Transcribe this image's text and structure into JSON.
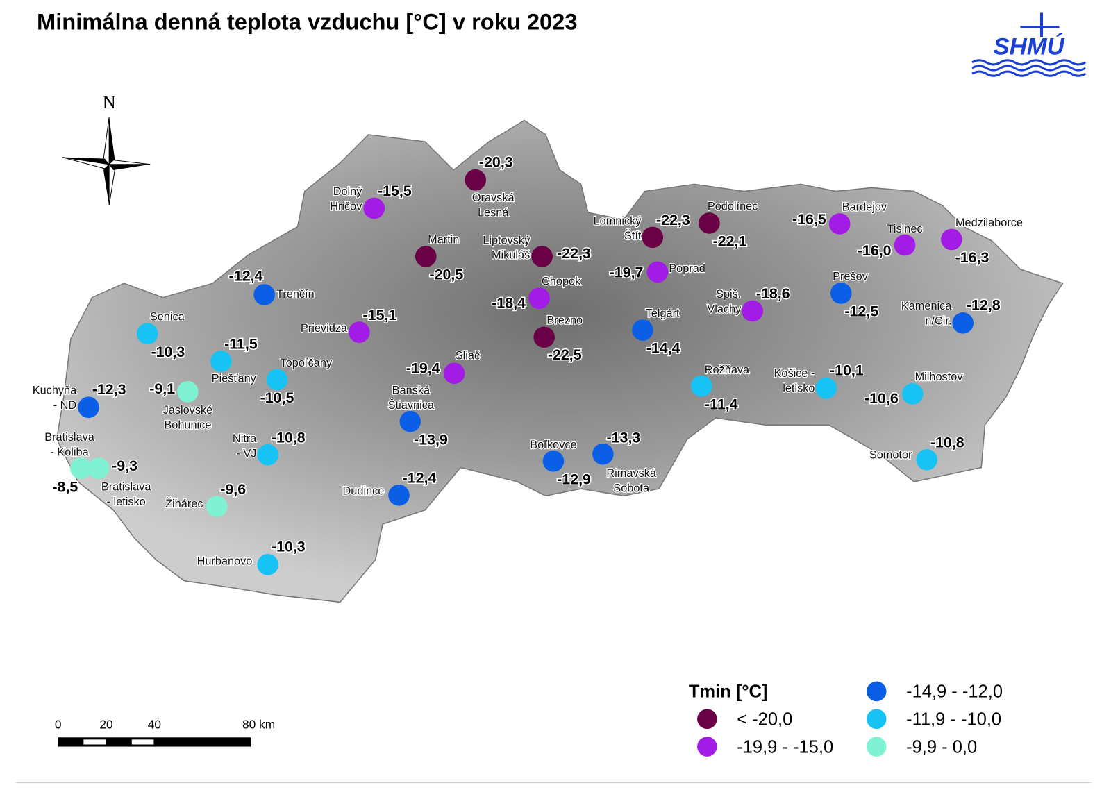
{
  "title": "Minimálna denná teplota vzduchu [°C] v roku 2023",
  "logo": "SHMÚ",
  "north": "N",
  "scale_bar": {
    "labels": [
      "0",
      "20",
      "40",
      "80 km"
    ]
  },
  "legend": {
    "title": "Tmin [°C]",
    "classes": [
      {
        "label": "< -20,0",
        "color": "#6a0045"
      },
      {
        "label": "-19,9 - -15,0",
        "color": "#a31ce6"
      },
      {
        "label": "-14,9 - -12,0",
        "color": "#0b5fe6"
      },
      {
        "label": "-11,9 - -10,0",
        "color": "#17c3f5"
      },
      {
        "label": "-9,9  - 0,0",
        "color": "#7ff2d4"
      }
    ]
  },
  "stations": [
    {
      "name": [
        "Dolný",
        "Hričov"
      ],
      "value": "-15,5",
      "class": 1
    },
    {
      "name": [
        "Oravská",
        "Lesná"
      ],
      "value": "-20,3",
      "class": 0
    },
    {
      "name": [
        "Martin"
      ],
      "value": "-20,5",
      "class": 0
    },
    {
      "name": [
        "Liptovský",
        "Mikuláš"
      ],
      "value": "-22,3",
      "class": 0
    },
    {
      "name": [
        "Lomnický",
        "Štít"
      ],
      "value": "-22,3",
      "class": 0
    },
    {
      "name": [
        "Podolínec"
      ],
      "value": "-22,1",
      "class": 0
    },
    {
      "name": [
        "Bardejov"
      ],
      "value": "-16,5",
      "class": 1
    },
    {
      "name": [
        "Tisinec"
      ],
      "value": "-16,0",
      "class": 1
    },
    {
      "name": [
        "Medzilaborce"
      ],
      "value": "-16,3",
      "class": 1
    },
    {
      "name": [
        "Trenčín"
      ],
      "value": "-12,4",
      "class": 2
    },
    {
      "name": [
        "Prievidza"
      ],
      "value": "-15,1",
      "class": 1
    },
    {
      "name": [
        "Chopok"
      ],
      "value": "-18,4",
      "class": 1
    },
    {
      "name": [
        "Poprad"
      ],
      "value": "-19,7",
      "class": 1
    },
    {
      "name": [
        "Spiš.",
        "Vlachy"
      ],
      "value": "-18,6",
      "class": 1
    },
    {
      "name": [
        "Prešov"
      ],
      "value": "-12,5",
      "class": 2
    },
    {
      "name": [
        "Kamenica",
        "n/Cir."
      ],
      "value": "-12,8",
      "class": 2
    },
    {
      "name": [
        "Senica"
      ],
      "value": "-10,3",
      "class": 3
    },
    {
      "name": [
        "Brezno"
      ],
      "value": "-22,5",
      "class": 0
    },
    {
      "name": [
        "Telgárt"
      ],
      "value": "-14,4",
      "class": 2
    },
    {
      "name": [
        "Piešťany"
      ],
      "value": "-11,5",
      "class": 3
    },
    {
      "name": [
        "Topoľčany"
      ],
      "value": "-10,5",
      "class": 3
    },
    {
      "name": [
        "Sliač"
      ],
      "value": "-19,4",
      "class": 1
    },
    {
      "name": [
        "Kuchyňa",
        "- ND"
      ],
      "value": "-12,3",
      "class": 2
    },
    {
      "name": [
        "Jaslovské",
        "Bohunice"
      ],
      "value": "-9,1",
      "class": 4
    },
    {
      "name": [
        "Banská",
        "Štiavnica"
      ],
      "value": "-13,9",
      "class": 2
    },
    {
      "name": [
        "Rožňava"
      ],
      "value": "-11,4",
      "class": 3
    },
    {
      "name": [
        "Košice -",
        "letisko"
      ],
      "value": "-10,1",
      "class": 3
    },
    {
      "name": [
        "Milhostov"
      ],
      "value": "-10,6",
      "class": 3
    },
    {
      "name": [
        "Nitra",
        "- VJ"
      ],
      "value": "-10,8",
      "class": 3
    },
    {
      "name": [
        "Bratislava",
        "- Koliba"
      ],
      "value": "-8,5",
      "class": 4
    },
    {
      "name": [
        "Bratislava",
        "- letisko"
      ],
      "value": "-9,3",
      "class": 4
    },
    {
      "name": [
        "Boľkovce"
      ],
      "value": "-12,9",
      "class": 2
    },
    {
      "name": [
        "Rimavská",
        "Sobota"
      ],
      "value": "-13,3",
      "class": 2
    },
    {
      "name": [
        "Somotor"
      ],
      "value": "-10,8",
      "class": 3
    },
    {
      "name": [
        "Dudince"
      ],
      "value": "-12,4",
      "class": 2
    },
    {
      "name": [
        "Žihárec"
      ],
      "value": "-9,6",
      "class": 4
    },
    {
      "name": [
        "Hurbanovo"
      ],
      "value": "-10,3",
      "class": 3
    }
  ]
}
